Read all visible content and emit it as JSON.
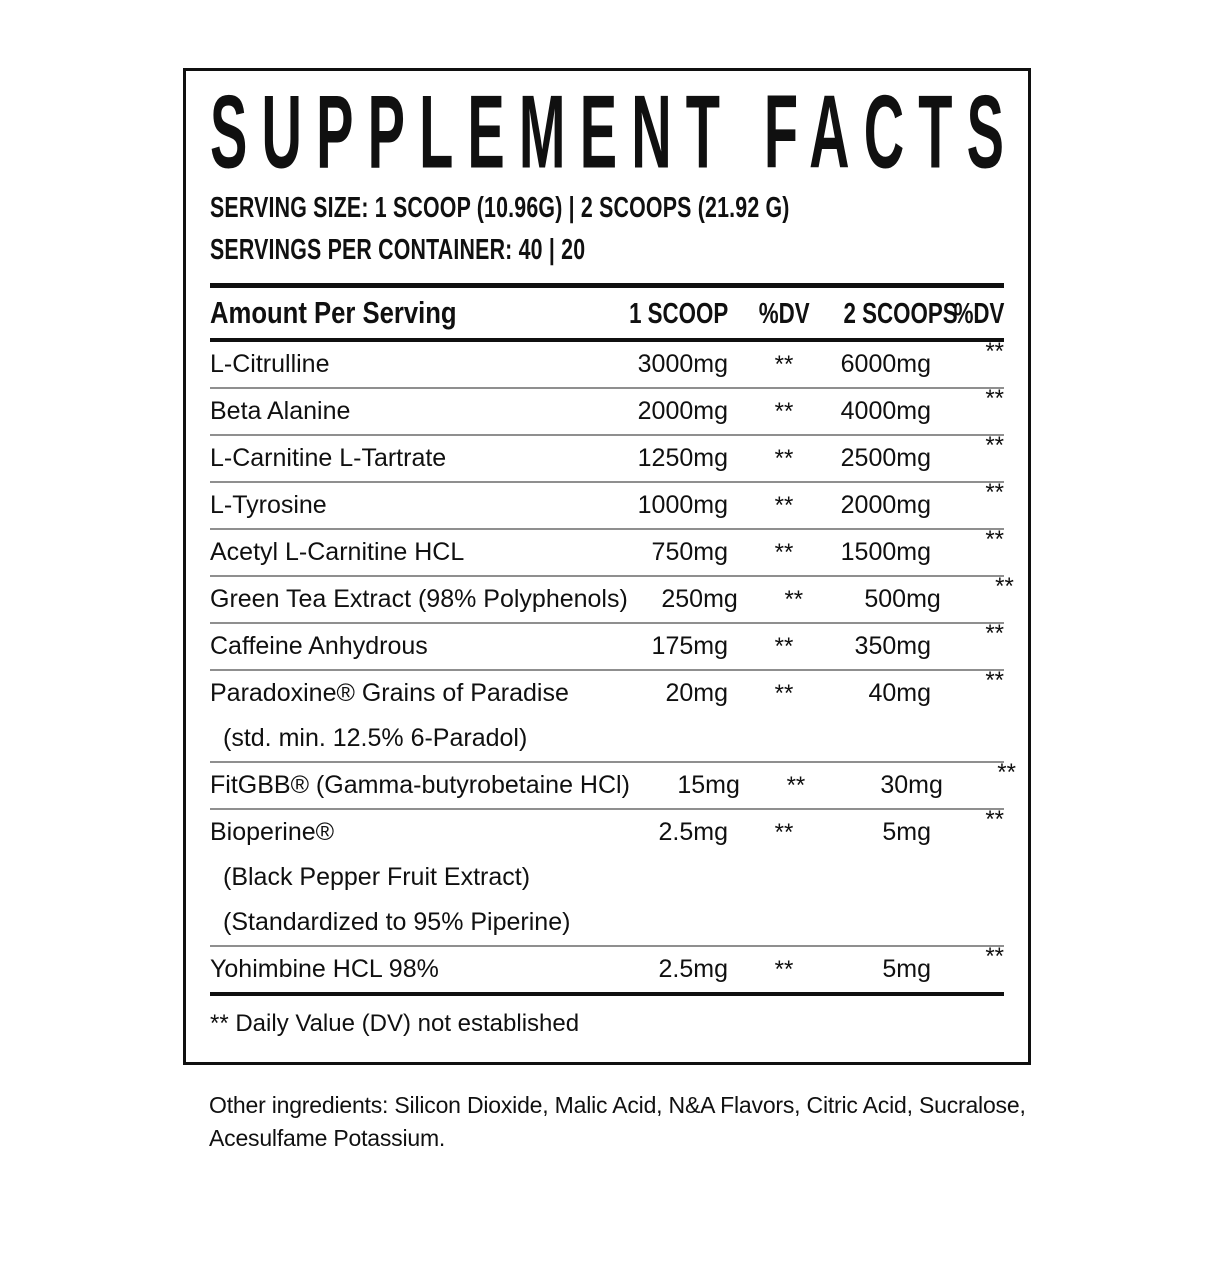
{
  "panel": {
    "title": "SUPPLEMENT FACTS",
    "serving_size": "SERVING SIZE: 1 SCOOP (10.96G) | 2 SCOOPS (21.92 G)",
    "servings_per_container": "SERVINGS PER CONTAINER: 40 | 20",
    "table": {
      "headers": [
        "Amount Per Serving",
        "1 SCOOP",
        "%DV",
        "2 SCOOPS",
        "%DV"
      ],
      "rows": [
        {
          "name": "L-Citrulline",
          "v1": "3000mg",
          "dv1": "**",
          "v2": "6000mg",
          "dv2": "**"
        },
        {
          "name": "Beta Alanine",
          "v1": "2000mg",
          "dv1": "**",
          "v2": "4000mg",
          "dv2": "**"
        },
        {
          "name": "L-Carnitine L-Tartrate",
          "v1": "1250mg",
          "dv1": "**",
          "v2": "2500mg",
          "dv2": "**"
        },
        {
          "name": "L-Tyrosine",
          "v1": "1000mg",
          "dv1": "**",
          "v2": "2000mg",
          "dv2": "**"
        },
        {
          "name": "Acetyl L-Carnitine HCL",
          "v1": "750mg",
          "dv1": "**",
          "v2": "1500mg",
          "dv2": "**"
        },
        {
          "name": "Green Tea Extract (98% Polyphenols)",
          "v1": "250mg",
          "dv1": "**",
          "v2": "500mg",
          "dv2": "**"
        },
        {
          "name": "Caffeine Anhydrous",
          "v1": "175mg",
          "dv1": "**",
          "v2": "350mg",
          "dv2": "**"
        },
        {
          "name": "Paradoxine® Grains of Paradise",
          "sub": [
            "(std. min. 12.5% 6-Paradol)"
          ],
          "v1": "20mg",
          "dv1": "**",
          "v2": "40mg",
          "dv2": "**"
        },
        {
          "name": "FitGBB® (Gamma-butyrobetaine HCl)",
          "v1": "15mg",
          "dv1": "**",
          "v2": "30mg",
          "dv2": "**"
        },
        {
          "name": "Bioperine®",
          "sub": [
            "(Black Pepper Fruit Extract)",
            "(Standardized to 95% Piperine)"
          ],
          "v1": "2.5mg",
          "dv1": "**",
          "v2": "5mg",
          "dv2": "**"
        },
        {
          "name": "Yohimbine HCL 98%",
          "v1": "2.5mg",
          "dv1": "**",
          "v2": "5mg",
          "dv2": "**"
        }
      ],
      "footnote": "** Daily Value (DV) not established"
    },
    "other_ingredients": "Other ingredients: Silicon Dioxide, Malic Acid, N&A Flavors, Citric Acid, Sucralose, Acesulfame Potassium."
  },
  "colors": {
    "ink": "#101010",
    "divider": "#8f8f8f",
    "background": "#ffffff"
  }
}
